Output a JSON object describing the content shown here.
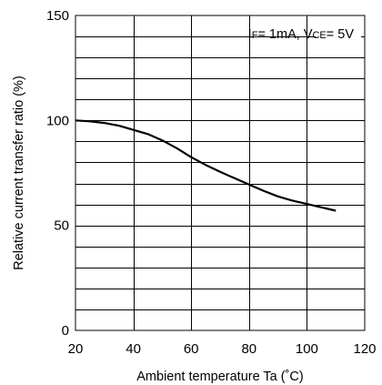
{
  "chart_data": {
    "type": "line",
    "xlabel": "Ambient temperature Ta (˚C)",
    "ylabel": "Relative current transfer ratio (%)",
    "xlim": [
      20,
      120
    ],
    "ylim": [
      0,
      150
    ],
    "x_ticks": [
      20,
      40,
      60,
      80,
      100,
      120
    ],
    "y_ticks": [
      0,
      50,
      100,
      150
    ],
    "grid": true,
    "annotation": {
      "if_label": "I",
      "if_sub": "F",
      "if_value": "= 1mA, ",
      "vce_label": "V",
      "vce_sub": "CE",
      "vce_value": "= 5V"
    },
    "series": [
      {
        "x": [
          20,
          25,
          30,
          35,
          40,
          45,
          50,
          55,
          60,
          65,
          70,
          75,
          80,
          85,
          90,
          95,
          100,
          105,
          110
        ],
        "y": [
          100,
          99.6,
          98.8,
          97.5,
          95.5,
          93.5,
          90.5,
          86.8,
          82.5,
          78.8,
          75.5,
          72.5,
          69.5,
          66.5,
          63.8,
          61.8,
          60.2,
          58.6,
          57
        ]
      }
    ]
  }
}
